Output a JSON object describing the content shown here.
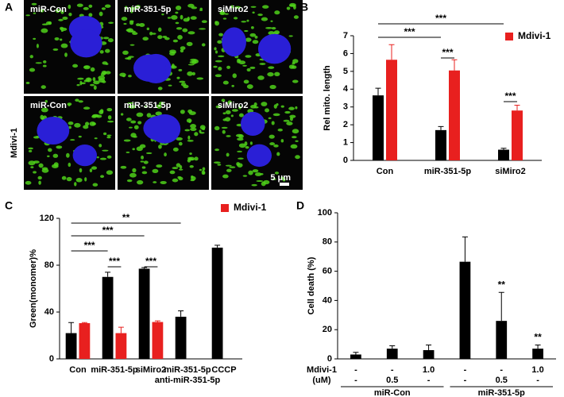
{
  "panels": [
    "A"
  ],
  "microscopy": {
    "images": [
      {
        "label": "miR-Con"
      },
      {
        "label": "miR-351-5p"
      },
      {
        "label": "siMiro2"
      },
      {
        "label": "miR-Con"
      },
      {
        "label": "miR-351-5p"
      },
      {
        "label": "siMiro2"
      }
    ],
    "row_label": "Mdivi-1",
    "scale_bar": "5 μm"
  },
  "chart_data": [
    {
      "type": "bar",
      "panel": "B",
      "y_label": "Rel mito. length",
      "categories": [
        "Con",
        "miR-351-5p",
        "siMiro2"
      ],
      "series": [
        {
          "color": "#000000",
          "values": [
            3.65,
            1.7,
            0.6
          ],
          "errors": [
            0.4,
            0.2,
            0.08
          ]
        },
        {
          "name": "Mdivi-1",
          "color": "#e8201f",
          "values": [
            5.65,
            5.05,
            2.8
          ],
          "errors": [
            0.85,
            0.6,
            0.3
          ]
        }
      ],
      "ylim": [
        0,
        7
      ],
      "yticks": [
        0,
        1,
        2,
        3,
        4,
        5,
        6,
        7
      ],
      "annotations": [
        "***",
        "***",
        "***",
        "***"
      ]
    },
    {
      "type": "bar",
      "panel": "C",
      "y_label": "Green(monomer)%",
      "categories": [
        "Con",
        "miR-351-5p",
        "siMiro2",
        [
          "miR-351-5p",
          "anti-miR-351-5p"
        ],
        "CCCP"
      ],
      "series": [
        {
          "color": "#000000",
          "values": [
            22,
            70,
            77,
            36,
            95
          ],
          "errors": [
            9,
            4,
            1,
            5,
            2
          ]
        },
        {
          "name": "Mdivi-1",
          "color": "#e8201f",
          "values": [
            30.5,
            22,
            31.5,
            null,
            null
          ],
          "errors": [
            0.5,
            5,
            1,
            null,
            null
          ]
        }
      ],
      "ylim": [
        0,
        120
      ],
      "yticks": [
        0,
        40,
        80,
        120
      ],
      "annotations": [
        "**",
        "***",
        "***",
        "***",
        "***"
      ]
    },
    {
      "type": "bar",
      "panel": "D",
      "y_label": "Cell death (%)",
      "categories": [
        null,
        null,
        null,
        null,
        null,
        null
      ],
      "series": [
        {
          "color": "#000000",
          "values": [
            3,
            7,
            6,
            66.5,
            26,
            7
          ],
          "errors": [
            1.5,
            2,
            3.5,
            17,
            19.5,
            2.5
          ]
        }
      ],
      "ylim": [
        0,
        100
      ],
      "yticks": [
        0,
        20,
        40,
        60,
        80,
        100
      ],
      "annotations": [
        "**",
        "**"
      ],
      "treatment_table": {
        "rows": [
          {
            "label": "Mdivi-1",
            "cells": [
              "-",
              "-",
              "1.0",
              "-",
              "-",
              "1.0"
            ]
          },
          {
            "label": "(uM)",
            "cells": [
              "-",
              "0.5",
              "-",
              "-",
              "0.5",
              "-"
            ]
          }
        ],
        "groups": [
          "miR-Con",
          "miR-351-5p"
        ]
      }
    }
  ]
}
